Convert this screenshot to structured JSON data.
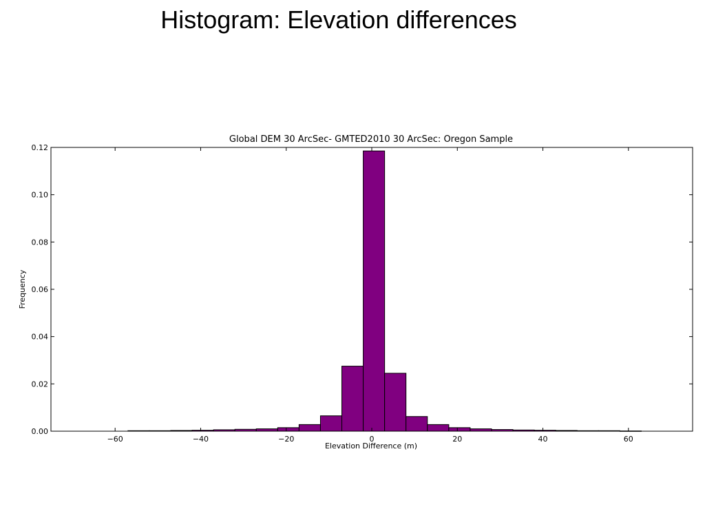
{
  "slide": {
    "title": "Histogram: Elevation differences"
  },
  "chart_data": {
    "type": "bar",
    "title": "Global DEM 30 ArcSec- GMTED2010 30 ArcSec: Oregon Sample",
    "xlabel": "Elevation Difference (m)",
    "ylabel": "Frequency",
    "xlim": [
      -75,
      75
    ],
    "ylim": [
      0,
      0.12
    ],
    "xticks": [
      -60,
      -40,
      -20,
      0,
      20,
      40,
      60
    ],
    "xtick_labels": [
      "−60",
      "−40",
      "−20",
      "0",
      "20",
      "40",
      "60"
    ],
    "yticks": [
      0.0,
      0.02,
      0.04,
      0.06,
      0.08,
      0.1,
      0.12
    ],
    "ytick_labels": [
      "0.00",
      "0.02",
      "0.04",
      "0.06",
      "0.08",
      "0.10",
      "0.12"
    ],
    "bin_edges": [
      -57,
      -52,
      -47,
      -42,
      -37,
      -32,
      -27,
      -22,
      -17,
      -12,
      -7,
      -2,
      3,
      8,
      13,
      18,
      23,
      28,
      33,
      38,
      43,
      48,
      53,
      58,
      63
    ],
    "values": [
      0.0002,
      0.0002,
      0.0003,
      0.0004,
      0.0006,
      0.0008,
      0.001,
      0.0015,
      0.0028,
      0.0065,
      0.0275,
      0.1185,
      0.0245,
      0.0062,
      0.0028,
      0.0015,
      0.001,
      0.0007,
      0.0005,
      0.0004,
      0.0003,
      0.0002,
      0.0002,
      0.0001
    ],
    "bar_color": "#800080",
    "edge_color": "#000000",
    "grid": false
  }
}
